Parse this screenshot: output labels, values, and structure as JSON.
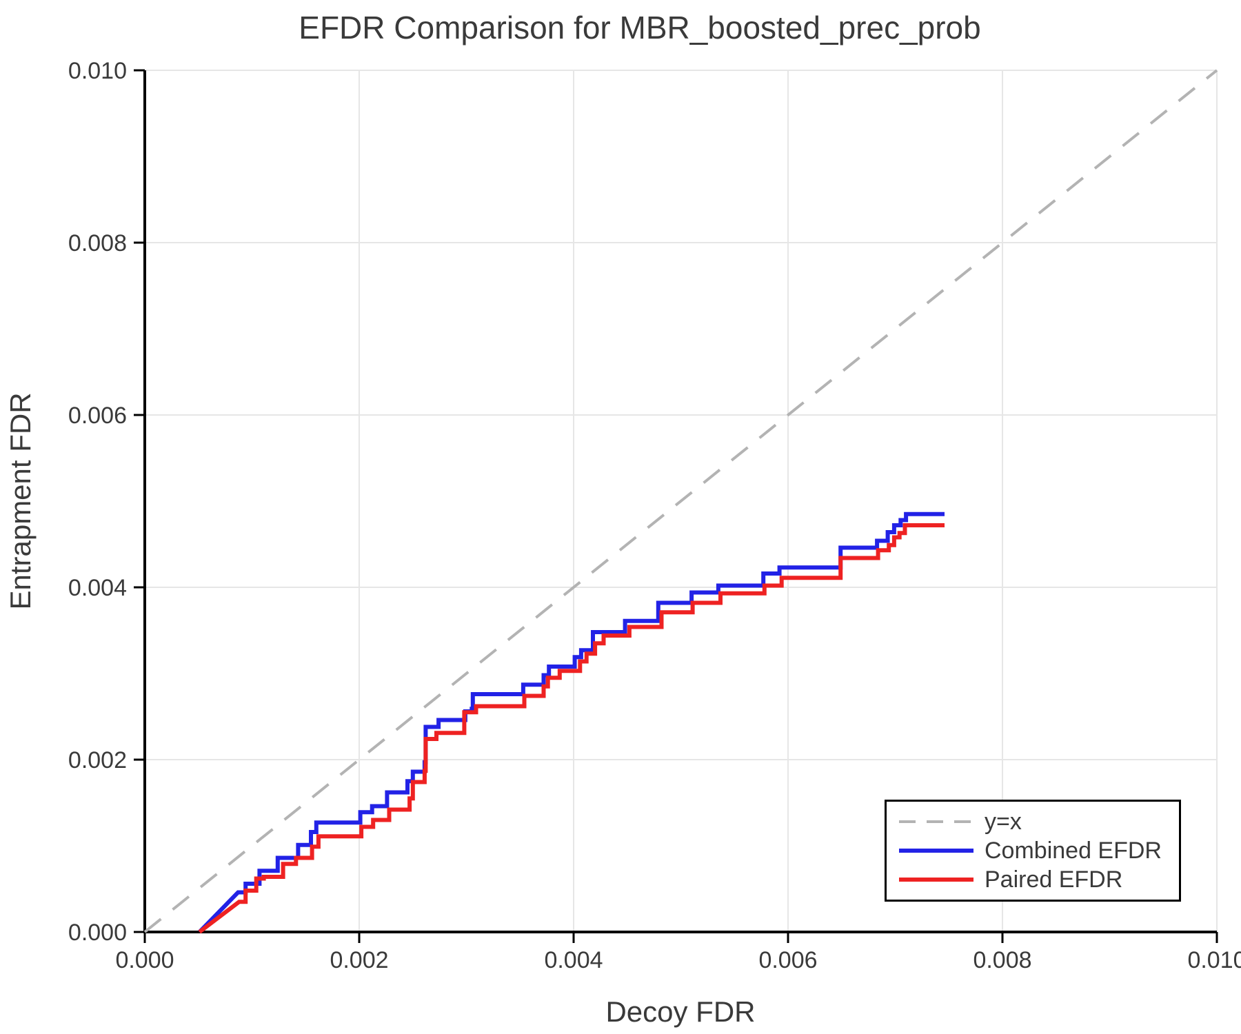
{
  "chart_data": {
    "type": "line",
    "title": "EFDR Comparison for MBR_boosted_prec_prob",
    "xlabel": "Decoy FDR",
    "ylabel": "Entrapment FDR",
    "xlim": [
      0.0,
      0.01
    ],
    "ylim": [
      0.0,
      0.01
    ],
    "grid": true,
    "grid_color": "#e6e6e6",
    "legend_position": "lower right",
    "xticks": {
      "values": [
        0.0,
        0.002,
        0.004,
        0.006,
        0.008,
        0.01
      ],
      "labels": [
        "0.000",
        "0.002",
        "0.004",
        "0.006",
        "0.008",
        "0.010"
      ]
    },
    "yticks": {
      "values": [
        0.0,
        0.002,
        0.004,
        0.006,
        0.008,
        0.01
      ],
      "labels": [
        "0.000",
        "0.002",
        "0.004",
        "0.006",
        "0.008",
        "0.010"
      ]
    },
    "series": [
      {
        "name": "y=x",
        "color": "#b3b3b3",
        "width": 4,
        "dash": "30 22",
        "points": [
          [
            0.0,
            0.0
          ],
          [
            0.01,
            0.01
          ]
        ]
      },
      {
        "name": "Combined EFDR",
        "color": "#2222e6",
        "width": 6,
        "dash": null,
        "points": [
          [
            0.00051,
            0.0
          ],
          [
            0.00087,
            0.00046
          ],
          [
            0.00094,
            0.00046
          ],
          [
            0.00094,
            0.00056
          ],
          [
            0.00107,
            0.00056
          ],
          [
            0.00107,
            0.00071
          ],
          [
            0.00124,
            0.00071
          ],
          [
            0.00124,
            0.00086
          ],
          [
            0.00143,
            0.00086
          ],
          [
            0.00143,
            0.00101
          ],
          [
            0.00155,
            0.00101
          ],
          [
            0.00155,
            0.00116
          ],
          [
            0.0016,
            0.00116
          ],
          [
            0.0016,
            0.00127
          ],
          [
            0.00201,
            0.00127
          ],
          [
            0.00201,
            0.00139
          ],
          [
            0.00212,
            0.00139
          ],
          [
            0.00212,
            0.00146
          ],
          [
            0.00226,
            0.00146
          ],
          [
            0.00226,
            0.00162
          ],
          [
            0.00245,
            0.00162
          ],
          [
            0.00245,
            0.00175
          ],
          [
            0.0025,
            0.00175
          ],
          [
            0.0025,
            0.00186
          ],
          [
            0.00261,
            0.00186
          ],
          [
            0.00261,
            0.00197
          ],
          [
            0.00262,
            0.00197
          ],
          [
            0.00262,
            0.00238
          ],
          [
            0.00274,
            0.00238
          ],
          [
            0.00274,
            0.00246
          ],
          [
            0.00299,
            0.00246
          ],
          [
            0.00299,
            0.00256
          ],
          [
            0.00305,
            0.00256
          ],
          [
            0.00305,
            0.00259
          ],
          [
            0.00306,
            0.00259
          ],
          [
            0.00306,
            0.00276
          ],
          [
            0.00353,
            0.00276
          ],
          [
            0.00353,
            0.00287
          ],
          [
            0.00372,
            0.00287
          ],
          [
            0.00372,
            0.00298
          ],
          [
            0.00377,
            0.00298
          ],
          [
            0.00377,
            0.00308
          ],
          [
            0.00401,
            0.00308
          ],
          [
            0.00401,
            0.00319
          ],
          [
            0.00407,
            0.00319
          ],
          [
            0.00407,
            0.00327
          ],
          [
            0.00418,
            0.00327
          ],
          [
            0.00418,
            0.00348
          ],
          [
            0.00448,
            0.00348
          ],
          [
            0.00448,
            0.00361
          ],
          [
            0.00479,
            0.00361
          ],
          [
            0.00479,
            0.00382
          ],
          [
            0.0051,
            0.00382
          ],
          [
            0.0051,
            0.00394
          ],
          [
            0.00535,
            0.00394
          ],
          [
            0.00535,
            0.00402
          ],
          [
            0.00577,
            0.00402
          ],
          [
            0.00577,
            0.00416
          ],
          [
            0.00592,
            0.00416
          ],
          [
            0.00592,
            0.00423
          ],
          [
            0.00649,
            0.00423
          ],
          [
            0.00649,
            0.00446
          ],
          [
            0.00683,
            0.00446
          ],
          [
            0.00683,
            0.00454
          ],
          [
            0.00693,
            0.00454
          ],
          [
            0.00693,
            0.00464
          ],
          [
            0.00699,
            0.00464
          ],
          [
            0.00699,
            0.00472
          ],
          [
            0.00705,
            0.00472
          ],
          [
            0.00705,
            0.00478
          ],
          [
            0.0071,
            0.00478
          ],
          [
            0.0071,
            0.00485
          ],
          [
            0.00746,
            0.00485
          ]
        ]
      },
      {
        "name": "Paired EFDR",
        "color": "#ee2222",
        "width": 6,
        "dash": null,
        "points": [
          [
            0.00051,
            0.0
          ],
          [
            0.00088,
            0.00035
          ],
          [
            0.00094,
            0.00035
          ],
          [
            0.00094,
            0.00048
          ],
          [
            0.00104,
            0.00048
          ],
          [
            0.00104,
            0.00062
          ],
          [
            0.00111,
            0.00062
          ],
          [
            0.00111,
            0.00064
          ],
          [
            0.00129,
            0.00064
          ],
          [
            0.00129,
            0.00079
          ],
          [
            0.00141,
            0.00079
          ],
          [
            0.00141,
            0.00086
          ],
          [
            0.00156,
            0.00086
          ],
          [
            0.00156,
            0.00099
          ],
          [
            0.00162,
            0.00099
          ],
          [
            0.00162,
            0.00111
          ],
          [
            0.00202,
            0.00111
          ],
          [
            0.00202,
            0.00122
          ],
          [
            0.00213,
            0.00122
          ],
          [
            0.00213,
            0.0013
          ],
          [
            0.00228,
            0.0013
          ],
          [
            0.00228,
            0.00142
          ],
          [
            0.00247,
            0.00142
          ],
          [
            0.00247,
            0.00155
          ],
          [
            0.0025,
            0.00155
          ],
          [
            0.0025,
            0.00174
          ],
          [
            0.00261,
            0.00174
          ],
          [
            0.00261,
            0.00187
          ],
          [
            0.00262,
            0.00187
          ],
          [
            0.00262,
            0.00224
          ],
          [
            0.00272,
            0.00224
          ],
          [
            0.00272,
            0.00231
          ],
          [
            0.00298,
            0.00231
          ],
          [
            0.00298,
            0.00255
          ],
          [
            0.00309,
            0.00255
          ],
          [
            0.00309,
            0.00262
          ],
          [
            0.00354,
            0.00262
          ],
          [
            0.00354,
            0.00274
          ],
          [
            0.00372,
            0.00274
          ],
          [
            0.00372,
            0.00285
          ],
          [
            0.00376,
            0.00285
          ],
          [
            0.00376,
            0.00295
          ],
          [
            0.00387,
            0.00295
          ],
          [
            0.00387,
            0.00303
          ],
          [
            0.00406,
            0.00303
          ],
          [
            0.00406,
            0.00314
          ],
          [
            0.00412,
            0.00314
          ],
          [
            0.00412,
            0.00323
          ],
          [
            0.0042,
            0.00323
          ],
          [
            0.0042,
            0.00335
          ],
          [
            0.00428,
            0.00335
          ],
          [
            0.00428,
            0.00344
          ],
          [
            0.00452,
            0.00344
          ],
          [
            0.00452,
            0.00354
          ],
          [
            0.00482,
            0.00354
          ],
          [
            0.00482,
            0.00371
          ],
          [
            0.00511,
            0.00371
          ],
          [
            0.00511,
            0.00382
          ],
          [
            0.00537,
            0.00382
          ],
          [
            0.00537,
            0.00393
          ],
          [
            0.00578,
            0.00393
          ],
          [
            0.00578,
            0.00402
          ],
          [
            0.00594,
            0.00402
          ],
          [
            0.00594,
            0.00411
          ],
          [
            0.00649,
            0.00411
          ],
          [
            0.00649,
            0.00434
          ],
          [
            0.00684,
            0.00434
          ],
          [
            0.00684,
            0.00443
          ],
          [
            0.00694,
            0.00443
          ],
          [
            0.00694,
            0.00449
          ],
          [
            0.00699,
            0.00449
          ],
          [
            0.00699,
            0.00458
          ],
          [
            0.00704,
            0.00458
          ],
          [
            0.00704,
            0.00463
          ],
          [
            0.00709,
            0.00463
          ],
          [
            0.00709,
            0.00472
          ],
          [
            0.00746,
            0.00472
          ]
        ]
      }
    ]
  }
}
